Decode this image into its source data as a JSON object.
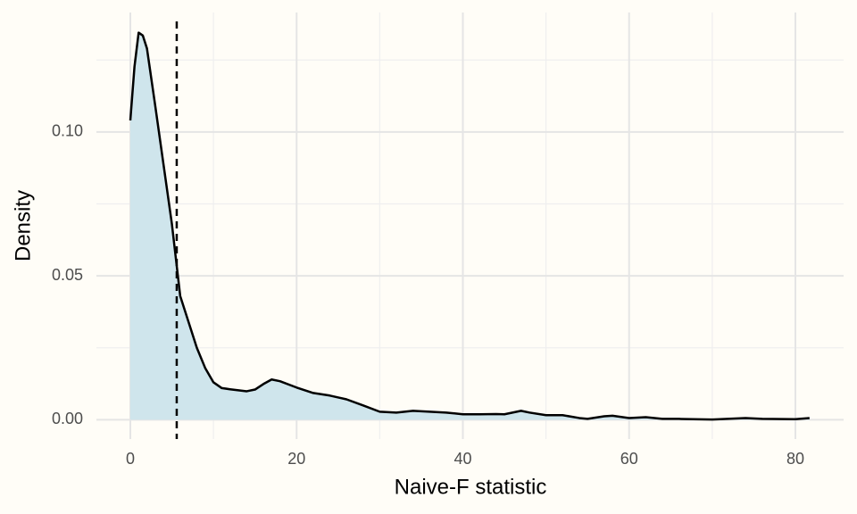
{
  "chart_data": {
    "type": "density",
    "x_label": "Naive-F statistic",
    "y_label": "Density",
    "x": [
      0,
      0.5,
      1,
      1.5,
      2,
      3,
      4,
      5,
      6,
      7,
      8,
      9,
      10,
      11,
      12,
      14,
      15,
      16,
      17,
      18,
      20,
      22,
      24,
      26,
      28,
      30,
      32,
      34,
      36,
      38,
      40,
      42,
      44,
      45,
      47,
      48,
      50,
      52,
      54,
      55,
      57,
      58,
      60,
      62,
      64,
      66,
      70,
      74,
      76,
      80,
      81.7
    ],
    "series": [
      {
        "line_color": "#000000",
        "color": "#cfe5ec",
        "values": [
          0.104,
          0.1227,
          0.1345,
          0.1335,
          0.129,
          0.109,
          0.0885,
          0.068,
          0.043,
          0.034,
          0.025,
          0.018,
          0.013,
          0.011,
          0.0106,
          0.0099,
          0.0105,
          0.0124,
          0.014,
          0.0134,
          0.0112,
          0.0093,
          0.0084,
          0.0071,
          0.005,
          0.0028,
          0.0025,
          0.0031,
          0.0028,
          0.0025,
          0.0019,
          0.0019,
          0.002,
          0.0019,
          0.0031,
          0.0025,
          0.0016,
          0.0016,
          0.0006,
          0.0003,
          0.0012,
          0.0014,
          0.0006,
          0.0009,
          0.0003,
          0.0003,
          0.0001,
          0.0006,
          0.0003,
          0.0002,
          0.0006
        ]
      }
    ],
    "vline": 5.58,
    "xlim": [
      -4.08,
      85.8
    ],
    "ylim": [
      -0.0067,
      0.1415
    ],
    "xticks": [
      0,
      20,
      40,
      60,
      80
    ],
    "yticks": [
      {
        "value": 0,
        "label": "0.00"
      },
      {
        "value": 0.05,
        "label": "0.05"
      },
      {
        "value": 0.1,
        "label": "0.10"
      }
    ],
    "xminor": [
      10,
      30,
      50,
      70
    ],
    "yminor": [
      0.025,
      0.075,
      0.125
    ],
    "grid": true
  }
}
